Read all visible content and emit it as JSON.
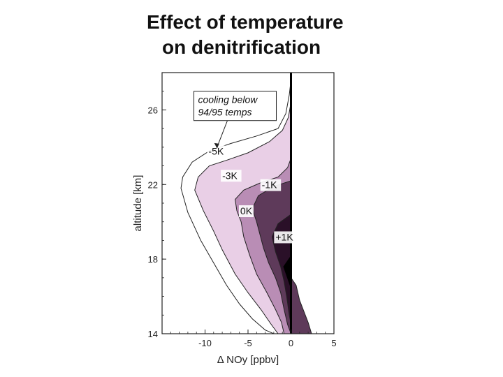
{
  "title_line1": "Effect of temperature",
  "title_line2": "on denitrification",
  "chart_data": {
    "type": "area",
    "title": "Effect of temperature on denitrification",
    "xlabel": "Δ NOy [ppbv]",
    "ylabel": "altitude [km]",
    "xlim": [
      -15,
      5
    ],
    "ylim": [
      14,
      28
    ],
    "x_ticks": [
      "-10",
      "-5",
      "0",
      "5"
    ],
    "x_tick_values": [
      -10,
      -5,
      0,
      5
    ],
    "y_ticks": [
      "14",
      "18",
      "22",
      "26"
    ],
    "y_tick_values": [
      14,
      18,
      22,
      26
    ],
    "annotation_box": [
      "cooling below",
      "94/95 temps"
    ],
    "series": [
      {
        "name": "-5K",
        "color": "#ffffff",
        "points": [
          [
            0,
            27.6
          ],
          [
            -0.2,
            26.8
          ],
          [
            -0.6,
            25.8
          ],
          [
            -1.5,
            25.0
          ],
          [
            -4,
            24.6
          ],
          [
            -7,
            24.2
          ],
          [
            -9.5,
            23.8
          ],
          [
            -11.5,
            23.2
          ],
          [
            -12.6,
            22.4
          ],
          [
            -12.8,
            21.8
          ],
          [
            -12,
            20.5
          ],
          [
            -10.5,
            19
          ],
          [
            -9,
            17.8
          ],
          [
            -7.5,
            16.6
          ],
          [
            -6,
            15.6
          ],
          [
            -4.5,
            14.8
          ],
          [
            -3,
            14.2
          ],
          [
            -2,
            14.0
          ]
        ]
      },
      {
        "name": "-3K",
        "color": "#e9cfe6",
        "points": [
          [
            0,
            26.4
          ],
          [
            -0.3,
            25.6
          ],
          [
            -1,
            24.9
          ],
          [
            -2.5,
            24.3
          ],
          [
            -5,
            23.7
          ],
          [
            -7.5,
            23.3
          ],
          [
            -9.5,
            23.0
          ],
          [
            -10.8,
            22.4
          ],
          [
            -11.2,
            21.7
          ],
          [
            -10.2,
            20.6
          ],
          [
            -9,
            19.5
          ],
          [
            -8,
            18.5
          ],
          [
            -6.5,
            17.2
          ],
          [
            -5,
            16.2
          ],
          [
            -3.5,
            15.3
          ],
          [
            -2.3,
            14.5
          ],
          [
            -1.5,
            14.0
          ]
        ]
      },
      {
        "name": "-1K",
        "color": "#b98db5",
        "points": [
          [
            0,
            23.4
          ],
          [
            -0.4,
            22.9
          ],
          [
            -1.5,
            22.4
          ],
          [
            -3.5,
            22.1
          ],
          [
            -5.5,
            21.7
          ],
          [
            -6.5,
            21.2
          ],
          [
            -6.3,
            20.6
          ],
          [
            -5.8,
            20.0
          ],
          [
            -5.5,
            19.2
          ],
          [
            -4.8,
            18.2
          ],
          [
            -4.0,
            17.2
          ],
          [
            -2.8,
            16.2
          ],
          [
            -1.8,
            15.3
          ],
          [
            -1.1,
            14.6
          ],
          [
            -0.8,
            14.0
          ]
        ]
      },
      {
        "name": "0K",
        "color": "#5e3a5a",
        "points": [
          [
            0,
            22.2
          ],
          [
            -2,
            21.9
          ],
          [
            -3.8,
            21.4
          ],
          [
            -4.5,
            20.7
          ],
          [
            -4,
            20.0
          ],
          [
            -3.6,
            19.3
          ],
          [
            -3.2,
            18.6
          ],
          [
            -2.6,
            17.8
          ],
          [
            -1.8,
            17.0
          ],
          [
            -1.2,
            16.2
          ],
          [
            -0.8,
            15.3
          ],
          [
            -0.4,
            14.5
          ],
          [
            0,
            14.0
          ]
        ]
      },
      {
        "name": "+1K",
        "color": "#2a1028",
        "points": [
          [
            0,
            20.4
          ],
          [
            -1.5,
            19.9
          ],
          [
            -2.2,
            19.2
          ],
          [
            -1.8,
            18.4
          ],
          [
            -1.2,
            17.6
          ],
          [
            -0.8,
            16.8
          ],
          [
            -0.5,
            16.0
          ],
          [
            -0.2,
            15.0
          ],
          [
            0,
            14.5
          ]
        ]
      }
    ],
    "right_side": {
      "name": "positive Δ NOy",
      "color": "#5e3a5a",
      "points": [
        [
          0,
          14.0
        ],
        [
          2.4,
          14.0
        ],
        [
          2.0,
          14.6
        ],
        [
          1.5,
          15.2
        ],
        [
          1.0,
          15.8
        ],
        [
          0.6,
          16.6
        ],
        [
          0,
          17.0
        ]
      ]
    },
    "contour_labels": [
      {
        "text": "-5K",
        "x": -9.6,
        "y": 23.6
      },
      {
        "text": "-3K",
        "x": -8.0,
        "y": 22.3
      },
      {
        "text": "-1K",
        "x": -3.4,
        "y": 21.8
      },
      {
        "text": "0K",
        "x": -5.9,
        "y": 20.4
      },
      {
        "text": "+1K",
        "x": -1.8,
        "y": 19.0
      }
    ]
  }
}
